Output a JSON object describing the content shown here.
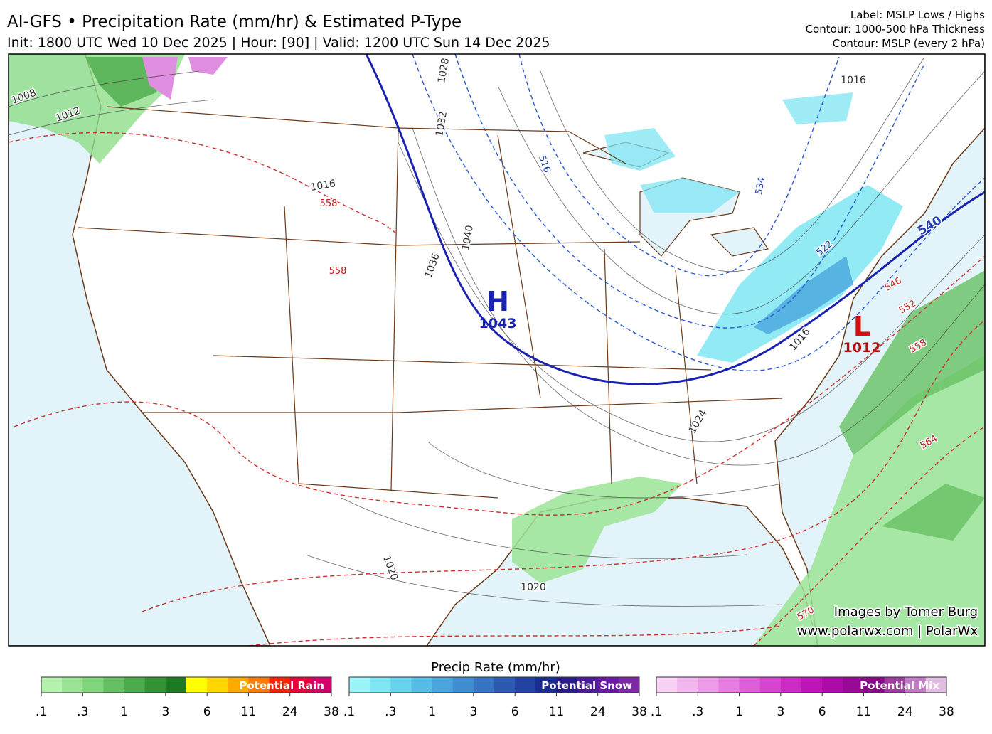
{
  "header": {
    "title": "AI-GFS • Precipitation Rate (mm/hr) & Estimated P-Type",
    "subtitle": "Init: 1800 UTC Wed 10 Dec 2025 | Hour: [90] | Valid: 1200 UTC Sun 14 Dec 2025",
    "notes": [
      "Label: MSLP Lows / Highs",
      "Contour: 1000-500 hPa Thickness",
      "Contour: MSLP (every 2 hPa)"
    ]
  },
  "map": {
    "high": {
      "letter": "H",
      "pressure": "1043"
    },
    "low": {
      "letter": "L",
      "pressure": "1012"
    },
    "isobar_labels": [
      "1008",
      "1012",
      "1016",
      "1020",
      "1020",
      "1024",
      "1028",
      "1032",
      "1036",
      "1040",
      "1016",
      "1016"
    ],
    "warm_thickness_labels": [
      "558",
      "558",
      "546",
      "552",
      "558",
      "564",
      "570"
    ],
    "cold_thickness_labels": [
      "516",
      "522",
      "534",
      "540"
    ],
    "credits": [
      "Images by Tomer Burg",
      "www.polarwx.com | PolarWx"
    ]
  },
  "legend": {
    "title": "Precip Rate (mm/hr)",
    "ticks": [
      ".1",
      ".3",
      "1",
      "3",
      "6",
      "11",
      "24",
      "38"
    ],
    "bars": [
      {
        "name": "Potential Rain",
        "colors": [
          "#b4f0ae",
          "#9be496",
          "#80d47c",
          "#66c063",
          "#4cab4b",
          "#329234",
          "#1d7a22",
          "#ffff00",
          "#ffd700",
          "#ffaa00",
          "#ff7b00",
          "#ff2200",
          "#e8003a",
          "#d4006c"
        ]
      },
      {
        "name": "Potential Snow",
        "colors": [
          "#9af4f8",
          "#7fe6f3",
          "#66d4ee",
          "#55bde6",
          "#49a5dc",
          "#3f8cd0",
          "#3673c2",
          "#2c5ab3",
          "#2442a3",
          "#1a2b91",
          "#2a1c8a",
          "#4a1a98",
          "#6a1aa8",
          "#7e2aa8"
        ]
      },
      {
        "name": "Potential Mix",
        "colors": [
          "#f7d2f5",
          "#f2b7ef",
          "#ed9ae8",
          "#e67de1",
          "#df5fd9",
          "#d744d0",
          "#cc2bc6",
          "#c014bb",
          "#ad0aaa",
          "#9a0898",
          "#880887",
          "#9e3ca0",
          "#c27ac4",
          "#e2bde2"
        ]
      }
    ]
  }
}
